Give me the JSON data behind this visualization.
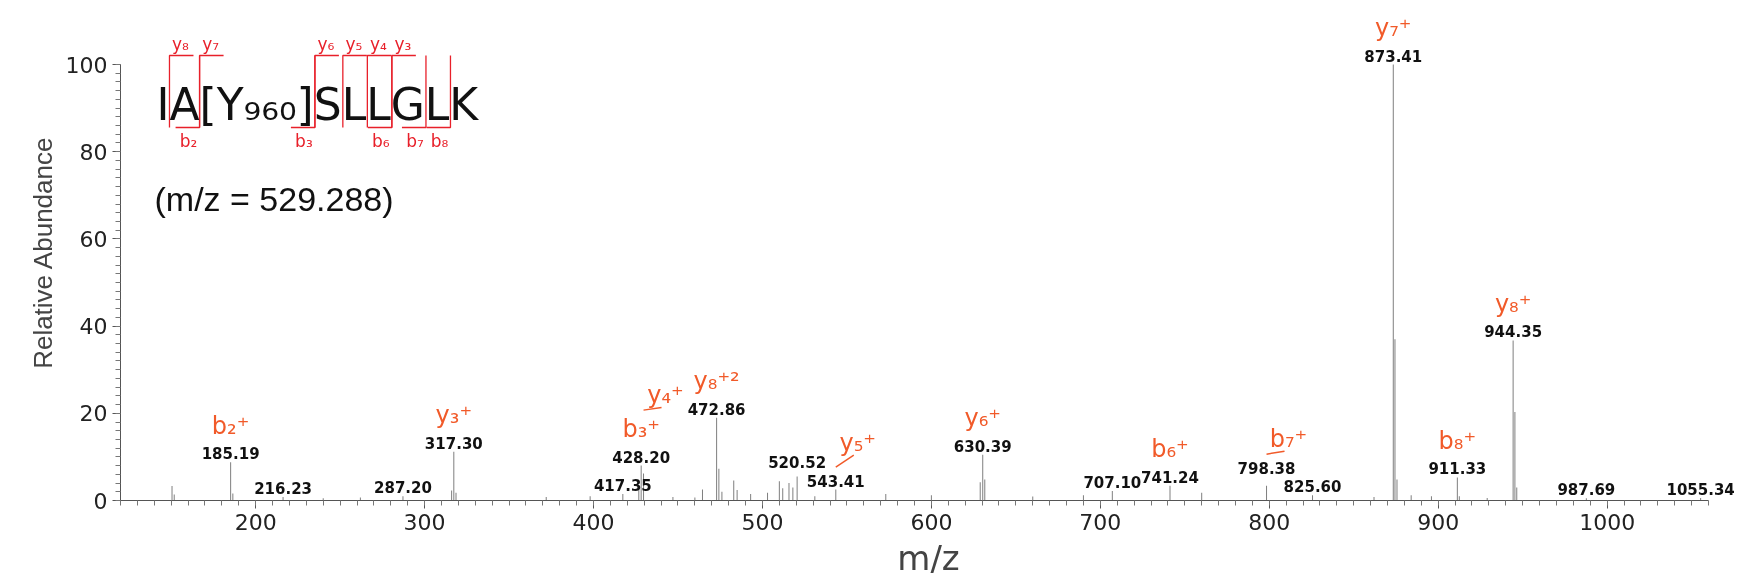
{
  "chart_data": {
    "type": "bar",
    "xlabel": "m/z",
    "ylabel": "Relative Abundance",
    "color": "#808080",
    "xlim": [
      120,
      1060
    ],
    "ylim": [
      0,
      100
    ],
    "xticks": [
      200,
      300,
      400,
      500,
      600,
      700,
      800,
      900,
      1000
    ],
    "yticks": [
      0,
      20,
      40,
      60,
      80,
      100
    ],
    "x": [
      150.5,
      151.8,
      185.19,
      186.5,
      216.23,
      240,
      262,
      287.2,
      316,
      317.3,
      318.6,
      372,
      398,
      417.35,
      426.8,
      428.2,
      429.6,
      447,
      460,
      464.5,
      472.86,
      474.2,
      476,
      483,
      485,
      493,
      503,
      510,
      512,
      515.7,
      518,
      520.52,
      531,
      543.41,
      573,
      600,
      628.9,
      630.39,
      631.6,
      660,
      690,
      707.1,
      741.24,
      760,
      798.38,
      825.6,
      862,
      873.41,
      874.4,
      875.6,
      884,
      896,
      911.33,
      912.5,
      929,
      944.35,
      945.4,
      946.5,
      987.69,
      1055.34
    ],
    "values": [
      3.3,
      1.4,
      8.8,
      1.6,
      0.8,
      0.5,
      0.7,
      1.0,
      2.3,
      11.2,
      1.8,
      0.8,
      1.0,
      1.5,
      2.6,
      8.0,
      6.2,
      0.8,
      0.7,
      2.5,
      19.0,
      7.3,
      2.0,
      4.6,
      2.4,
      1.5,
      1.8,
      4.4,
      2.8,
      4.0,
      3.0,
      5.5,
      1.0,
      2.5,
      1.5,
      1.2,
      4.2,
      10.5,
      4.8,
      0.9,
      1.2,
      2.2,
      3.4,
      1.8,
      3.4,
      1.2,
      0.8,
      100,
      37,
      4.8,
      1.2,
      1.0,
      5.3,
      1.0,
      0.6,
      36.7,
      20.3,
      3.0,
      0.5,
      0.6
    ],
    "annotations": [
      "IA[Y₉₆₀]SLLGLK",
      "(m/z = 529.288)",
      "y₈",
      "y₇",
      "y₆",
      "y₅",
      "y₄",
      "y₃",
      "b₂",
      "b₃",
      "b₆",
      "b₇",
      "b₈",
      {
        "text": "185.19",
        "x": 185.19,
        "y": 8.8
      },
      {
        "text": "216.23",
        "x": 216.23,
        "y": 0.8
      },
      {
        "text": "287.20",
        "x": 287.2,
        "y": 1.0
      },
      {
        "text": "317.30",
        "x": 317.3,
        "y": 11.2
      },
      {
        "text": "417.35",
        "x": 417.35,
        "y": 1.5
      },
      {
        "text": "428.20",
        "x": 428.2,
        "y": 8.0
      },
      {
        "text": "472.86",
        "x": 472.86,
        "y": 19.0
      },
      {
        "text": "520.52",
        "x": 520.52,
        "y": 5.5
      },
      {
        "text": "543.41",
        "x": 543.41,
        "y": 2.5
      },
      {
        "text": "630.39",
        "x": 630.39,
        "y": 10.5
      },
      {
        "text": "707.10",
        "x": 707.1,
        "y": 2.2
      },
      {
        "text": "741.24",
        "x": 741.24,
        "y": 3.4
      },
      {
        "text": "798.38",
        "x": 798.38,
        "y": 3.4
      },
      {
        "text": "825.60",
        "x": 825.6,
        "y": 1.2
      },
      {
        "text": "873.41",
        "x": 873.41,
        "y": 100
      },
      {
        "text": "911.33",
        "x": 911.33,
        "y": 5.3
      },
      {
        "text": "944.35",
        "x": 944.35,
        "y": 36.7
      },
      {
        "text": "987.69",
        "x": 987.69,
        "y": 0.5
      },
      {
        "text": "1055.34",
        "x": 1055.34,
        "y": 0.6
      },
      {
        "text": "b₂⁺",
        "x": 185.19,
        "y": 8.8
      },
      {
        "text": "y₃⁺",
        "x": 317.3,
        "y": 11.2
      },
      {
        "text": "b₃⁺",
        "x": 428.2,
        "y": 8.0
      },
      {
        "text": "y₄⁺",
        "x": 429.6,
        "y": 6.2
      },
      {
        "text": "y₈⁺²",
        "x": 472.86,
        "y": 19.0
      },
      {
        "text": "y₅⁺",
        "x": 543.41,
        "y": 2.5
      },
      {
        "text": "y₆⁺",
        "x": 630.39,
        "y": 10.5
      },
      {
        "text": "b₆⁺",
        "x": 741.24,
        "y": 3.4
      },
      {
        "text": "b₇⁺",
        "x": 798.38,
        "y": 3.4
      },
      {
        "text": "y₇⁺",
        "x": 873.41,
        "y": 100
      },
      {
        "text": "b₈⁺",
        "x": 911.33,
        "y": 5.3
      },
      {
        "text": "y₈⁺",
        "x": 944.35,
        "y": 36.7
      }
    ]
  }
}
